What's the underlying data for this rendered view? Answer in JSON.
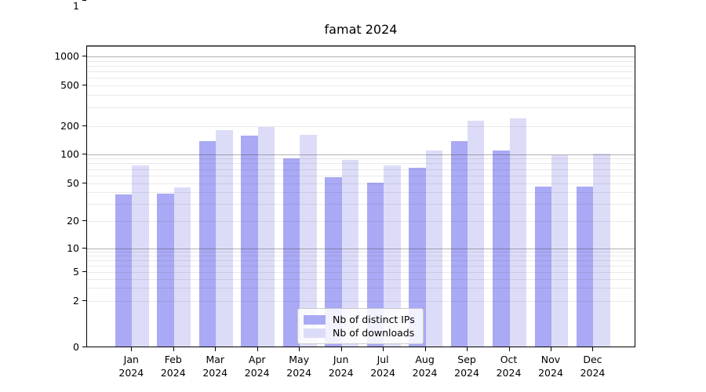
{
  "chart_data": {
    "type": "bar",
    "title": "famat 2024",
    "categories": [
      "Jan",
      "Feb",
      "Mar",
      "Apr",
      "May",
      "Jun",
      "Jul",
      "Aug",
      "Sep",
      "Oct",
      "Nov",
      "Dec"
    ],
    "category_year": "2024",
    "series": [
      {
        "name": "Nb of distinct IPs",
        "color": "#a9a9f5",
        "values": [
          37,
          38,
          135,
          155,
          88,
          56,
          50,
          71,
          134,
          107,
          45,
          45
        ]
      },
      {
        "name": "Nb of downloads",
        "color": "#dcdcf9",
        "values": [
          75,
          44,
          177,
          190,
          158,
          86,
          75,
          107,
          222,
          234,
          95,
          100
        ]
      }
    ],
    "y_axis": {
      "scale": "symlog",
      "ticks": [
        0,
        1,
        2,
        5,
        10,
        20,
        50,
        100,
        200,
        500,
        1000
      ],
      "major_gridlines": [
        1,
        10,
        100,
        1000
      ],
      "minor_gridlines": [
        2,
        3,
        4,
        5,
        6,
        7,
        8,
        9,
        20,
        30,
        40,
        50,
        60,
        70,
        80,
        90,
        200,
        300,
        400,
        500,
        600,
        700,
        800,
        900
      ]
    },
    "legend": {
      "position": "lower center",
      "entries": [
        "Nb of distinct IPs",
        "Nb of downloads"
      ]
    },
    "grid": true,
    "colors": {
      "axis": "#000000",
      "major_grid": "rgba(70,70,70,0.42)",
      "minor_grid": "rgba(70,70,70,0.12)",
      "background": "#ffffff"
    }
  }
}
